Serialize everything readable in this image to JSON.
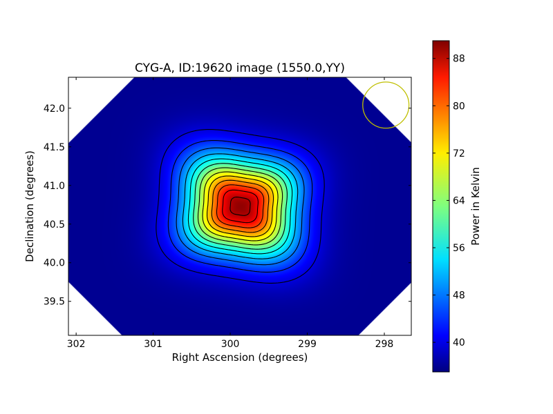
{
  "chart_data": {
    "type": "heatmap",
    "title": "CYG-A, ID:19620 image (1550.0,YY)",
    "xlabel": "Right Ascension (degrees)",
    "ylabel": "Declination (degrees)",
    "colorbar_label": "Power in Kelvin",
    "xlim": [
      302.1,
      297.65
    ],
    "ylim": [
      39.06,
      42.4
    ],
    "x_ticks": [
      {
        "value": 302,
        "label": "302"
      },
      {
        "value": 301,
        "label": "301"
      },
      {
        "value": 300,
        "label": "300"
      },
      {
        "value": 299,
        "label": "299"
      },
      {
        "value": 298,
        "label": "298"
      }
    ],
    "y_ticks": [
      {
        "value": 39.5,
        "label": "39.5"
      },
      {
        "value": 40.0,
        "label": "40.0"
      },
      {
        "value": 40.5,
        "label": "40.5"
      },
      {
        "value": 41.0,
        "label": "41.0"
      },
      {
        "value": 41.5,
        "label": "41.5"
      },
      {
        "value": 42.0,
        "label": "42.0"
      }
    ],
    "colorbar_range": [
      35,
      91
    ],
    "colorbar_ticks": [
      {
        "value": 40,
        "label": "40"
      },
      {
        "value": 48,
        "label": "48"
      },
      {
        "value": 56,
        "label": "56"
      },
      {
        "value": 64,
        "label": "64"
      },
      {
        "value": 72,
        "label": "72"
      },
      {
        "value": 80,
        "label": "80"
      },
      {
        "value": 88,
        "label": "88"
      }
    ],
    "source": {
      "ra": 299.87,
      "dec": 40.73,
      "peak_k": 90,
      "background_k": 36
    },
    "contour_levels": [
      40,
      44,
      48,
      52,
      56,
      60,
      64,
      68,
      72,
      76,
      80,
      84,
      88
    ],
    "beam_circle": {
      "ra": 297.98,
      "dec": 42.04,
      "radius_deg": 0.3,
      "color": "#bfbf00"
    },
    "colormap": "jet"
  }
}
